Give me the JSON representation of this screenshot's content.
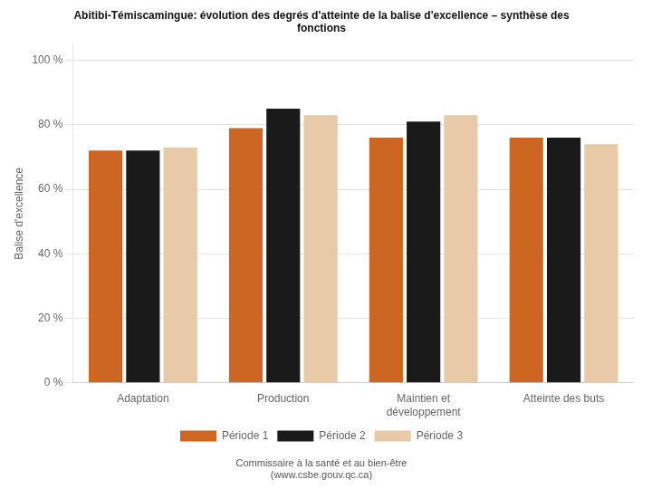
{
  "chart_data": {
    "type": "bar",
    "title": [
      "Abitibi-Témiscamingue: évolution des degrés d'atteinte de la balise d'excellence – synthèse des",
      "fonctions"
    ],
    "ylabel": "Balise d'excellence",
    "categories": [
      "Adaptation",
      "Production",
      "Maintien et\ndéveloppement",
      "Atteinte des buts"
    ],
    "series": [
      {
        "name": "Période 1",
        "color": "#CC6622",
        "values": [
          0.72,
          0.79,
          0.76,
          0.76
        ]
      },
      {
        "name": "Période 2",
        "color": "#1a1a1a",
        "values": [
          0.72,
          0.85,
          0.81,
          0.76
        ]
      },
      {
        "name": "Période 3",
        "color": "#E8C9A8",
        "values": [
          0.73,
          0.83,
          0.83,
          0.74
        ]
      }
    ],
    "ylim": [
      0,
      1.05
    ],
    "yticks": [
      {
        "value": 0.0,
        "label": "0 %"
      },
      {
        "value": 0.2,
        "label": "20 %"
      },
      {
        "value": 0.4,
        "label": "40 %"
      },
      {
        "value": 0.6,
        "label": "60 %"
      },
      {
        "value": 0.8,
        "label": "80 %"
      },
      {
        "value": 1.0,
        "label": "100 %"
      }
    ],
    "grid": true,
    "legend": "bottom",
    "annotations": [
      "Commissaire à la santé et au bien-être",
      "(www.csbe.gouv.qc.ca)"
    ]
  }
}
